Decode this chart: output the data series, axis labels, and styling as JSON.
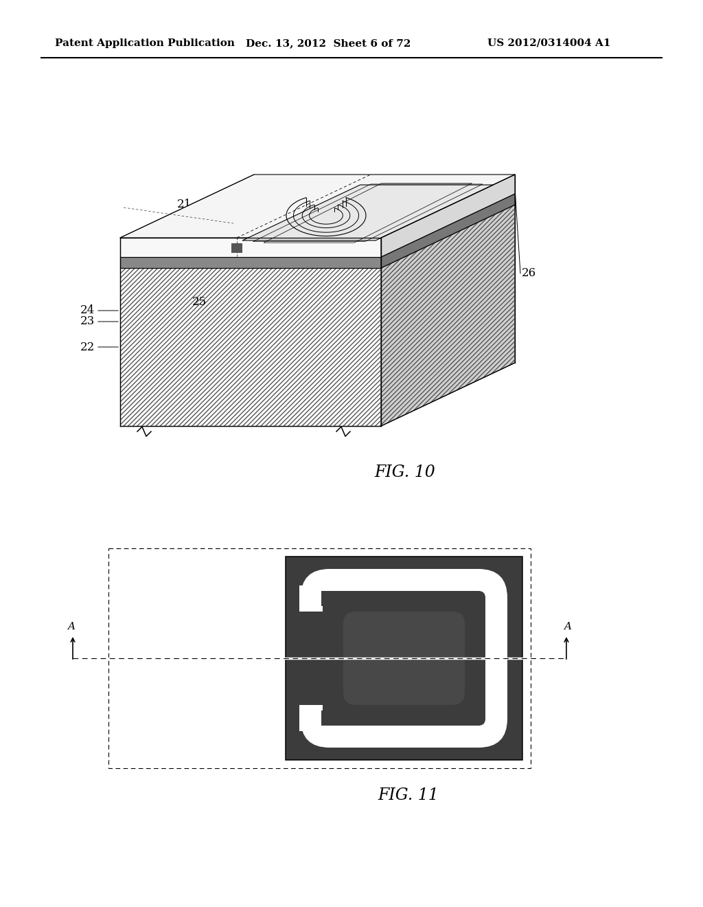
{
  "background_color": "#ffffff",
  "header_left": "Patent Application Publication",
  "header_center": "Dec. 13, 2012  Sheet 6 of 72",
  "header_right": "US 2012/0314004 A1",
  "fig10_label": "FIG. 10",
  "fig11_label": "FIG. 11",
  "dark_gray": "#3c3c3c",
  "mid_gray": "#888888",
  "light_gray": "#d8d8d8",
  "substrate_hatch_color": "#666666",
  "passiv_color": "#999999",
  "top_layer_color": "#f0f0f0"
}
